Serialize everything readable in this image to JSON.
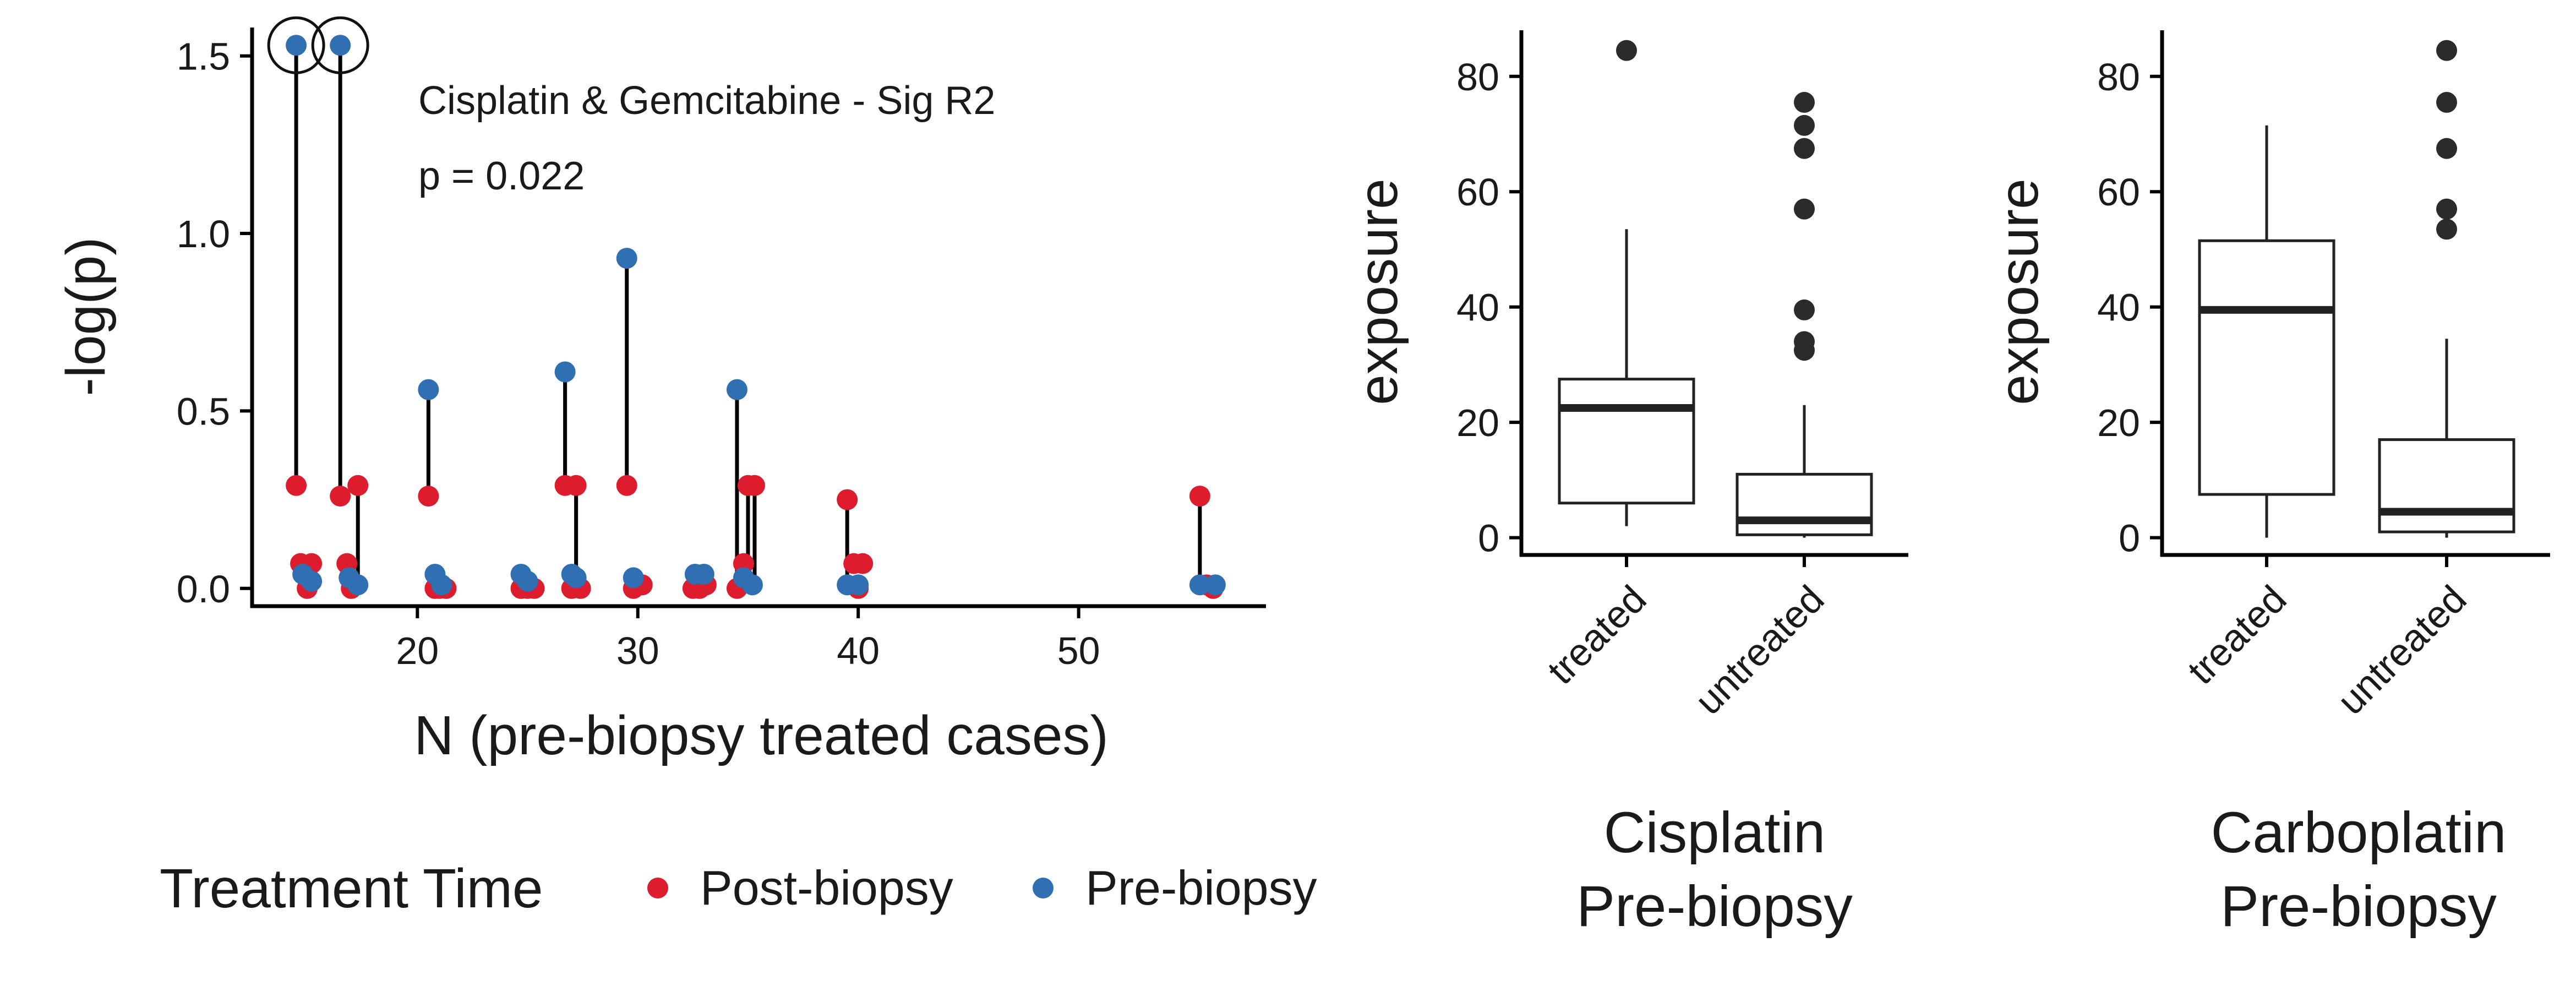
{
  "colors": {
    "post": "#dd1c2e",
    "pre": "#3070b2",
    "box": "#222222",
    "outlier": "#2b2b2b"
  },
  "scatter": {
    "xlabel": "N (pre-biopsy treated cases)",
    "ylabel": "-log(p)",
    "xlim": [
      12.5,
      58.5
    ],
    "ylim": [
      -0.05,
      1.58
    ],
    "xticks": [
      20,
      30,
      40,
      50
    ],
    "yticks": [
      0.0,
      0.5,
      1.0,
      1.5
    ],
    "ytick_labels": [
      "0.0",
      "0.5",
      "1.0",
      "1.5"
    ],
    "annotation_line1": "Cisplatin & Gemcitabine - Sig R2",
    "annotation_line2": "p = 0.022",
    "legend_title": "Treatment Time",
    "legend_post": "Post-biopsy",
    "legend_pre": "Pre-biopsy"
  },
  "box_left": {
    "caption_line1": "Cisplatin",
    "caption_line2": "Pre-biopsy",
    "ylabel": "exposure",
    "categories": [
      "treated",
      "untreated"
    ],
    "yticks": [
      0,
      20,
      40,
      60,
      80
    ]
  },
  "box_right": {
    "caption_line1": "Carboplatin",
    "caption_line2": "Pre-biopsy",
    "ylabel": "exposure",
    "categories": [
      "treated",
      "untreated"
    ],
    "yticks": [
      0,
      20,
      40,
      60,
      80
    ]
  },
  "chart_data": [
    {
      "type": "scatter",
      "title": "Cisplatin & Gemcitabine - Sig R2",
      "xlabel": "N (pre-biopsy treated cases)",
      "ylabel": "-log(p)",
      "xlim": [
        12.5,
        58.5
      ],
      "ylim": [
        -0.05,
        1.58
      ],
      "grid": false,
      "legend_position": "bottom",
      "series": [
        {
          "name": "Post-biopsy",
          "points": [
            [
              14.5,
              0.29
            ],
            [
              14.7,
              0.07
            ],
            [
              15.0,
              0.0
            ],
            [
              15.2,
              0.07
            ],
            [
              16.5,
              0.26
            ],
            [
              16.8,
              0.07
            ],
            [
              17.0,
              0.0
            ],
            [
              17.3,
              0.29
            ],
            [
              20.5,
              0.26
            ],
            [
              20.8,
              0.0
            ],
            [
              21.0,
              0.0
            ],
            [
              21.3,
              0.0
            ],
            [
              24.7,
              0.0
            ],
            [
              25.0,
              0.0
            ],
            [
              25.3,
              0.0
            ],
            [
              26.7,
              0.29
            ],
            [
              27.0,
              0.0
            ],
            [
              27.2,
              0.29
            ],
            [
              27.4,
              0.0
            ],
            [
              29.5,
              0.29
            ],
            [
              29.8,
              0.0
            ],
            [
              30.2,
              0.01
            ],
            [
              32.5,
              0.0
            ],
            [
              32.8,
              0.0
            ],
            [
              33.1,
              0.01
            ],
            [
              34.5,
              0.0
            ],
            [
              34.8,
              0.07
            ],
            [
              35.0,
              0.29
            ],
            [
              35.3,
              0.29
            ],
            [
              39.5,
              0.25
            ],
            [
              39.8,
              0.07
            ],
            [
              40.0,
              0.0
            ],
            [
              40.2,
              0.07
            ],
            [
              55.5,
              0.26
            ],
            [
              55.8,
              0.01
            ],
            [
              56.1,
              0.0
            ]
          ]
        },
        {
          "name": "Pre-biopsy",
          "points": [
            [
              14.5,
              1.53
            ],
            [
              14.8,
              0.04
            ],
            [
              15.2,
              0.02
            ],
            [
              16.5,
              1.53
            ],
            [
              16.9,
              0.03
            ],
            [
              17.3,
              0.01
            ],
            [
              20.5,
              0.56
            ],
            [
              20.8,
              0.04
            ],
            [
              21.1,
              0.01
            ],
            [
              24.7,
              0.04
            ],
            [
              25.0,
              0.02
            ],
            [
              26.7,
              0.61
            ],
            [
              27.0,
              0.04
            ],
            [
              27.2,
              0.03
            ],
            [
              29.5,
              0.93
            ],
            [
              29.8,
              0.03
            ],
            [
              32.6,
              0.04
            ],
            [
              33.0,
              0.04
            ],
            [
              34.5,
              0.56
            ],
            [
              34.8,
              0.03
            ],
            [
              35.2,
              0.01
            ],
            [
              39.5,
              0.01
            ],
            [
              40.0,
              0.01
            ],
            [
              55.5,
              0.01
            ],
            [
              56.2,
              0.01
            ]
          ]
        }
      ],
      "segments": [
        [
          14.5,
          0.29,
          1.53
        ],
        [
          16.5,
          0.26,
          1.53
        ],
        [
          17.3,
          0.01,
          0.29
        ],
        [
          20.5,
          0.26,
          0.56
        ],
        [
          26.7,
          0.29,
          0.61
        ],
        [
          27.2,
          0.03,
          0.29
        ],
        [
          29.5,
          0.29,
          0.93
        ],
        [
          34.5,
          0.0,
          0.56
        ],
        [
          35.0,
          0.01,
          0.29
        ],
        [
          35.3,
          0.01,
          0.29
        ],
        [
          39.5,
          0.01,
          0.25
        ],
        [
          55.5,
          0.01,
          0.26
        ]
      ],
      "highlighted": [
        [
          14.5,
          1.53
        ],
        [
          16.5,
          1.53
        ]
      ]
    },
    {
      "type": "box",
      "xlabel": "Cisplatin Pre-biopsy",
      "ylabel": "exposure",
      "categories": [
        "treated",
        "untreated"
      ],
      "ylim": [
        -3,
        88
      ],
      "boxes": [
        {
          "category": "treated",
          "lower_whisker": 2,
          "q1": 6,
          "median": 22.5,
          "q3": 27.5,
          "upper_whisker": 53.5,
          "outliers": [
            84.5
          ]
        },
        {
          "category": "untreated",
          "lower_whisker": 0,
          "q1": 0.5,
          "median": 3,
          "q3": 11,
          "upper_whisker": 23,
          "outliers": [
            32.5,
            34,
            39.5,
            57,
            67.5,
            71.5,
            75.5
          ]
        }
      ]
    },
    {
      "type": "box",
      "xlabel": "Carboplatin Pre-biopsy",
      "ylabel": "exposure",
      "categories": [
        "treated",
        "untreated"
      ],
      "ylim": [
        -3,
        88
      ],
      "boxes": [
        {
          "category": "treated",
          "lower_whisker": 0,
          "q1": 7.5,
          "median": 39.5,
          "q3": 51.5,
          "upper_whisker": 71.5,
          "outliers": []
        },
        {
          "category": "untreated",
          "lower_whisker": 0,
          "q1": 1,
          "median": 4.5,
          "q3": 17,
          "upper_whisker": 34.5,
          "outliers": [
            53.5,
            57,
            67.5,
            75.5,
            84.5
          ]
        }
      ]
    }
  ]
}
